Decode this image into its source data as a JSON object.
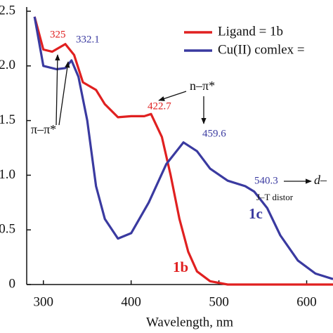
{
  "chart_data": {
    "type": "line",
    "x_label": "Wavelength, nm",
    "xlim": [
      281,
      630
    ],
    "ylim": [
      0,
      2.5
    ],
    "xticks": [
      300,
      400,
      500,
      600
    ],
    "yticks": [
      0,
      0.5,
      {
        "value": 1,
        "label": "1.0"
      },
      1.5,
      {
        "value": 2,
        "label": "2.0"
      },
      2.5
    ],
    "series": [
      {
        "name": "Ligand = 1b",
        "color": "#e02020",
        "x": [
          290,
          300,
          310,
          325,
          335,
          345,
          360,
          370,
          385,
          400,
          415,
          422.7,
          435,
          445,
          455,
          465,
          475,
          490,
          510,
          630
        ],
        "values": [
          2.45,
          2.15,
          2.13,
          2.2,
          2.1,
          1.85,
          1.78,
          1.65,
          1.53,
          1.54,
          1.54,
          1.56,
          1.35,
          1.0,
          0.6,
          0.3,
          0.12,
          0.03,
          0,
          0
        ]
      },
      {
        "name": "Cu(II) comlex =",
        "color": "#3a3aa0",
        "x": [
          290,
          300,
          315,
          325,
          332.1,
          340,
          350,
          360,
          370,
          385,
          400,
          420,
          440,
          459.6,
          475,
          490,
          510,
          530,
          540.3,
          555,
          570,
          590,
          610,
          630
        ],
        "values": [
          2.45,
          2.0,
          1.97,
          1.98,
          2.05,
          1.9,
          1.5,
          0.9,
          0.6,
          0.42,
          0.47,
          0.75,
          1.1,
          1.3,
          1.22,
          1.06,
          0.95,
          0.9,
          0.85,
          0.7,
          0.45,
          0.22,
          0.1,
          0.05
        ]
      }
    ],
    "annotations": [
      "325",
      "332.1",
      "422.7",
      "459.6",
      "540.3",
      "n–π*",
      "π–π*",
      "d–",
      "J–T distor",
      "1c",
      "1b"
    ]
  }
}
